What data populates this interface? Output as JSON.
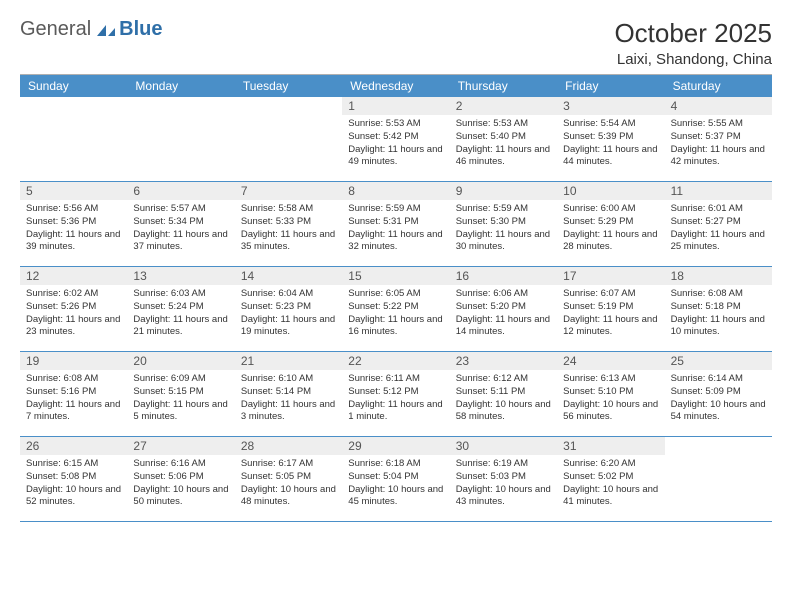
{
  "logo": {
    "general": "General",
    "blue": "Blue"
  },
  "title": "October 2025",
  "location": "Laixi, Shandong, China",
  "colors": {
    "header_bg": "#4a8fc8",
    "header_text": "#ffffff",
    "daynum_bg": "#eeeeee",
    "daynum_text": "#555555",
    "body_text": "#333333",
    "week_divider": "#4a8fc8",
    "top_border": "#b0b0b0",
    "logo_general": "#5a5a5a",
    "logo_blue": "#2f6fa8",
    "background": "#ffffff"
  },
  "weekdays": [
    "Sunday",
    "Monday",
    "Tuesday",
    "Wednesday",
    "Thursday",
    "Friday",
    "Saturday"
  ],
  "weeks": [
    [
      {
        "blank": true
      },
      {
        "blank": true
      },
      {
        "blank": true
      },
      {
        "day": "1",
        "sunrise": "Sunrise: 5:53 AM",
        "sunset": "Sunset: 5:42 PM",
        "daylight": "Daylight: 11 hours and 49 minutes."
      },
      {
        "day": "2",
        "sunrise": "Sunrise: 5:53 AM",
        "sunset": "Sunset: 5:40 PM",
        "daylight": "Daylight: 11 hours and 46 minutes."
      },
      {
        "day": "3",
        "sunrise": "Sunrise: 5:54 AM",
        "sunset": "Sunset: 5:39 PM",
        "daylight": "Daylight: 11 hours and 44 minutes."
      },
      {
        "day": "4",
        "sunrise": "Sunrise: 5:55 AM",
        "sunset": "Sunset: 5:37 PM",
        "daylight": "Daylight: 11 hours and 42 minutes."
      }
    ],
    [
      {
        "day": "5",
        "sunrise": "Sunrise: 5:56 AM",
        "sunset": "Sunset: 5:36 PM",
        "daylight": "Daylight: 11 hours and 39 minutes."
      },
      {
        "day": "6",
        "sunrise": "Sunrise: 5:57 AM",
        "sunset": "Sunset: 5:34 PM",
        "daylight": "Daylight: 11 hours and 37 minutes."
      },
      {
        "day": "7",
        "sunrise": "Sunrise: 5:58 AM",
        "sunset": "Sunset: 5:33 PM",
        "daylight": "Daylight: 11 hours and 35 minutes."
      },
      {
        "day": "8",
        "sunrise": "Sunrise: 5:59 AM",
        "sunset": "Sunset: 5:31 PM",
        "daylight": "Daylight: 11 hours and 32 minutes."
      },
      {
        "day": "9",
        "sunrise": "Sunrise: 5:59 AM",
        "sunset": "Sunset: 5:30 PM",
        "daylight": "Daylight: 11 hours and 30 minutes."
      },
      {
        "day": "10",
        "sunrise": "Sunrise: 6:00 AM",
        "sunset": "Sunset: 5:29 PM",
        "daylight": "Daylight: 11 hours and 28 minutes."
      },
      {
        "day": "11",
        "sunrise": "Sunrise: 6:01 AM",
        "sunset": "Sunset: 5:27 PM",
        "daylight": "Daylight: 11 hours and 25 minutes."
      }
    ],
    [
      {
        "day": "12",
        "sunrise": "Sunrise: 6:02 AM",
        "sunset": "Sunset: 5:26 PM",
        "daylight": "Daylight: 11 hours and 23 minutes."
      },
      {
        "day": "13",
        "sunrise": "Sunrise: 6:03 AM",
        "sunset": "Sunset: 5:24 PM",
        "daylight": "Daylight: 11 hours and 21 minutes."
      },
      {
        "day": "14",
        "sunrise": "Sunrise: 6:04 AM",
        "sunset": "Sunset: 5:23 PM",
        "daylight": "Daylight: 11 hours and 19 minutes."
      },
      {
        "day": "15",
        "sunrise": "Sunrise: 6:05 AM",
        "sunset": "Sunset: 5:22 PM",
        "daylight": "Daylight: 11 hours and 16 minutes."
      },
      {
        "day": "16",
        "sunrise": "Sunrise: 6:06 AM",
        "sunset": "Sunset: 5:20 PM",
        "daylight": "Daylight: 11 hours and 14 minutes."
      },
      {
        "day": "17",
        "sunrise": "Sunrise: 6:07 AM",
        "sunset": "Sunset: 5:19 PM",
        "daylight": "Daylight: 11 hours and 12 minutes."
      },
      {
        "day": "18",
        "sunrise": "Sunrise: 6:08 AM",
        "sunset": "Sunset: 5:18 PM",
        "daylight": "Daylight: 11 hours and 10 minutes."
      }
    ],
    [
      {
        "day": "19",
        "sunrise": "Sunrise: 6:08 AM",
        "sunset": "Sunset: 5:16 PM",
        "daylight": "Daylight: 11 hours and 7 minutes."
      },
      {
        "day": "20",
        "sunrise": "Sunrise: 6:09 AM",
        "sunset": "Sunset: 5:15 PM",
        "daylight": "Daylight: 11 hours and 5 minutes."
      },
      {
        "day": "21",
        "sunrise": "Sunrise: 6:10 AM",
        "sunset": "Sunset: 5:14 PM",
        "daylight": "Daylight: 11 hours and 3 minutes."
      },
      {
        "day": "22",
        "sunrise": "Sunrise: 6:11 AM",
        "sunset": "Sunset: 5:12 PM",
        "daylight": "Daylight: 11 hours and 1 minute."
      },
      {
        "day": "23",
        "sunrise": "Sunrise: 6:12 AM",
        "sunset": "Sunset: 5:11 PM",
        "daylight": "Daylight: 10 hours and 58 minutes."
      },
      {
        "day": "24",
        "sunrise": "Sunrise: 6:13 AM",
        "sunset": "Sunset: 5:10 PM",
        "daylight": "Daylight: 10 hours and 56 minutes."
      },
      {
        "day": "25",
        "sunrise": "Sunrise: 6:14 AM",
        "sunset": "Sunset: 5:09 PM",
        "daylight": "Daylight: 10 hours and 54 minutes."
      }
    ],
    [
      {
        "day": "26",
        "sunrise": "Sunrise: 6:15 AM",
        "sunset": "Sunset: 5:08 PM",
        "daylight": "Daylight: 10 hours and 52 minutes."
      },
      {
        "day": "27",
        "sunrise": "Sunrise: 6:16 AM",
        "sunset": "Sunset: 5:06 PM",
        "daylight": "Daylight: 10 hours and 50 minutes."
      },
      {
        "day": "28",
        "sunrise": "Sunrise: 6:17 AM",
        "sunset": "Sunset: 5:05 PM",
        "daylight": "Daylight: 10 hours and 48 minutes."
      },
      {
        "day": "29",
        "sunrise": "Sunrise: 6:18 AM",
        "sunset": "Sunset: 5:04 PM",
        "daylight": "Daylight: 10 hours and 45 minutes."
      },
      {
        "day": "30",
        "sunrise": "Sunrise: 6:19 AM",
        "sunset": "Sunset: 5:03 PM",
        "daylight": "Daylight: 10 hours and 43 minutes."
      },
      {
        "day": "31",
        "sunrise": "Sunrise: 6:20 AM",
        "sunset": "Sunset: 5:02 PM",
        "daylight": "Daylight: 10 hours and 41 minutes."
      },
      {
        "blank": true
      }
    ]
  ]
}
